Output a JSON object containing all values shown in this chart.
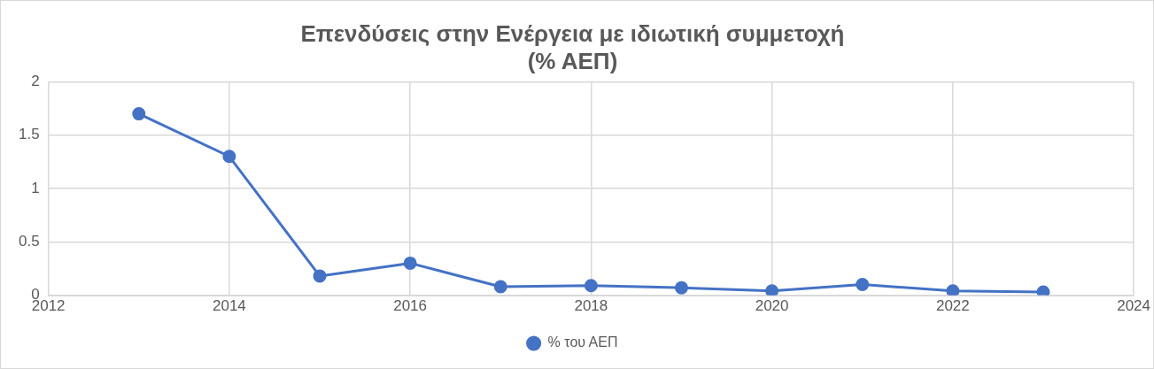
{
  "chart_data": {
    "type": "line",
    "title": [
      "Επενδύσεις στην Ενέργεια με ιδιωτική συμμετοχή",
      "(% ΑΕΠ)"
    ],
    "x": [
      2013,
      2014,
      2015,
      2016,
      2017,
      2018,
      2019,
      2020,
      2021,
      2022,
      2023
    ],
    "series": [
      {
        "name": "% του ΑΕΠ",
        "color": "#4472c4",
        "values": [
          1.7,
          1.3,
          0.18,
          0.3,
          0.08,
          0.09,
          0.07,
          0.04,
          0.1,
          0.04,
          0.03
        ]
      }
    ],
    "xlim": [
      2012,
      2024
    ],
    "xticks": [
      2012,
      2014,
      2016,
      2018,
      2020,
      2022,
      2024
    ],
    "ylim": [
      0,
      2
    ],
    "yticks": [
      0,
      0.5,
      1,
      1.5,
      2
    ],
    "grid": true,
    "legend": "bottom",
    "marker": "circle",
    "line_style": "solid"
  }
}
